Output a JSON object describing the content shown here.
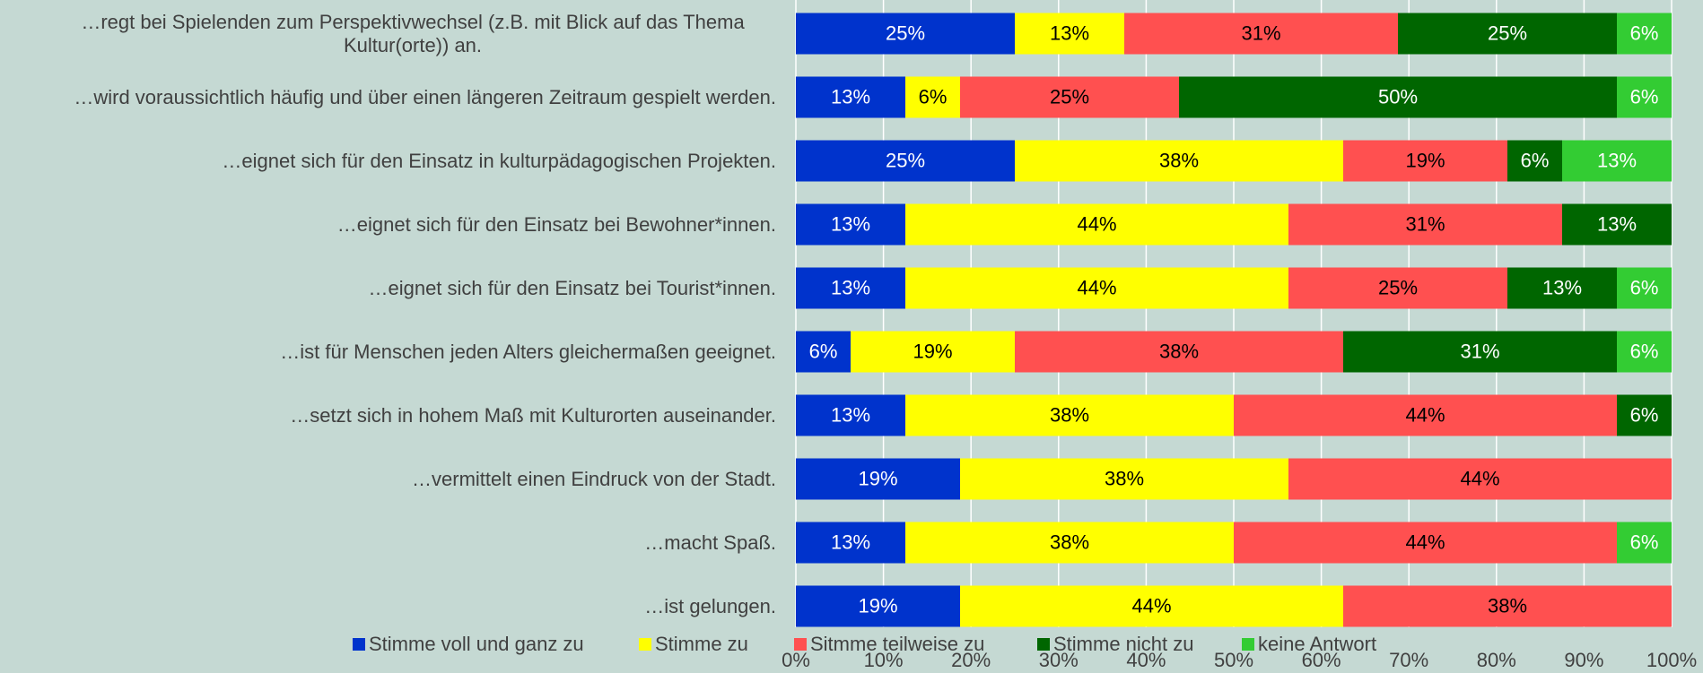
{
  "chart_data": {
    "type": "stacked-bar-horizontal",
    "categories": [
      "…regt bei Spielenden zum Perspektivwechsel (z.B. mit Blick auf das Thema Kultur(orte)) an.",
      "…wird voraussichtlich häufig und über einen längeren Zeitraum gespielt werden.",
      "…eignet sich für den Einsatz in kulturpädagogischen Projekten.",
      "…eignet sich für den Einsatz bei Bewohner*innen.",
      "…eignet sich für den Einsatz bei Tourist*innen.",
      "…ist für Menschen jeden Alters gleichermaßen geeignet.",
      "…setzt sich in hohem Maß mit Kulturorten auseinander.",
      "…vermittelt einen Eindruck von der Stadt.",
      "…macht Spaß.",
      "…ist gelungen."
    ],
    "series": [
      {
        "name": "Stimme voll und ganz zu",
        "color": "#0033cc",
        "label_color": "#ffffff",
        "values": [
          25,
          12.5,
          25,
          12.5,
          12.5,
          6.25,
          12.5,
          18.75,
          12.5,
          18.75
        ],
        "value_labels": [
          "25%",
          "13%",
          "25%",
          "13%",
          "13%",
          "6%",
          "13%",
          "19%",
          "13%",
          "19%"
        ]
      },
      {
        "name": "Stimme zu",
        "color": "#ffff00",
        "label_color": "#000000",
        "values": [
          12.5,
          6.25,
          37.5,
          43.75,
          43.75,
          18.75,
          37.5,
          37.5,
          37.5,
          43.75
        ],
        "value_labels": [
          "13%",
          "6%",
          "38%",
          "44%",
          "44%",
          "19%",
          "38%",
          "38%",
          "38%",
          "44%"
        ]
      },
      {
        "name": "Sitmme teilweise zu",
        "color": "#ff5050",
        "label_color": "#000000",
        "values": [
          31.25,
          25,
          18.75,
          31.25,
          25,
          37.5,
          43.75,
          43.75,
          43.75,
          37.5
        ],
        "value_labels": [
          "31%",
          "25%",
          "19%",
          "31%",
          "25%",
          "38%",
          "44%",
          "44%",
          "44%",
          "38%"
        ]
      },
      {
        "name": "Stimme nicht zu",
        "color": "#006600",
        "label_color": "#ffffff",
        "values": [
          25,
          50,
          6.25,
          12.5,
          12.5,
          31.25,
          6.25,
          0,
          0,
          0
        ],
        "value_labels": [
          "25%",
          "50%",
          "6%",
          "13%",
          "13%",
          "31%",
          "6%",
          null,
          null,
          null
        ]
      },
      {
        "name": "keine Antwort",
        "color": "#33cc33",
        "label_color": "#ffffff",
        "values": [
          6.25,
          6.25,
          12.5,
          0,
          6.25,
          6.25,
          0,
          0,
          6.25,
          0
        ],
        "value_labels": [
          "6%",
          "6%",
          "13%",
          null,
          "6%",
          "6%",
          null,
          null,
          "6%",
          null
        ]
      }
    ],
    "xlim": [
      0,
      100
    ],
    "xticks": [
      {
        "value": 0,
        "label": "0%"
      },
      {
        "value": 10,
        "label": "10%"
      },
      {
        "value": 20,
        "label": "20%"
      },
      {
        "value": 30,
        "label": "30%"
      },
      {
        "value": 40,
        "label": "40%"
      },
      {
        "value": 50,
        "label": "50%"
      },
      {
        "value": 60,
        "label": "60%"
      },
      {
        "value": 70,
        "label": "70%"
      },
      {
        "value": 80,
        "label": "80%"
      },
      {
        "value": 90,
        "label": "90%"
      },
      {
        "value": 100,
        "label": "100%"
      }
    ],
    "grid": true,
    "legend": "bottom"
  }
}
